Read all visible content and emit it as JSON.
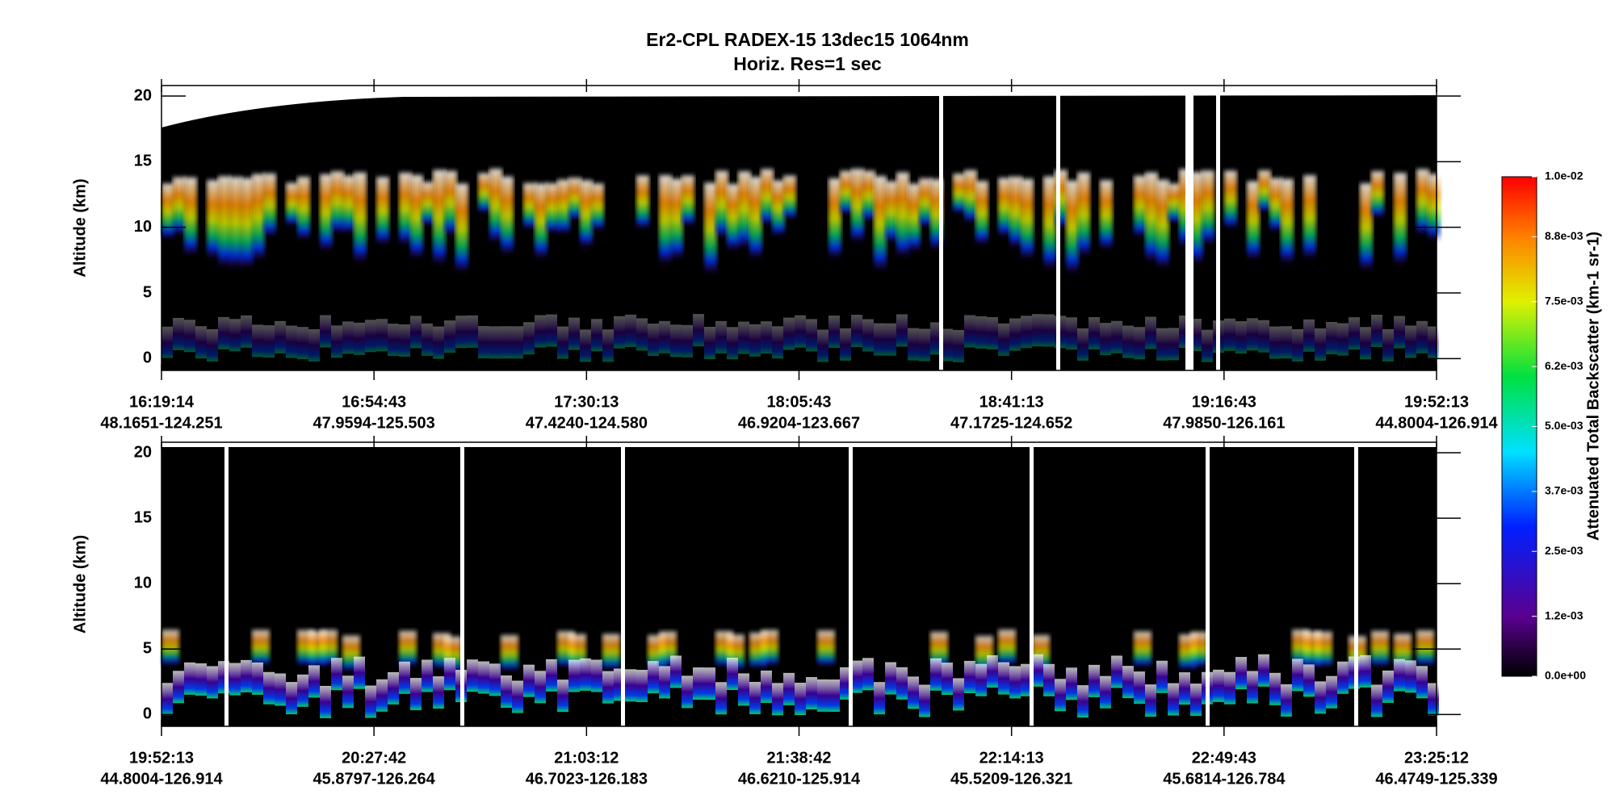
{
  "title": "Er2-CPL  RADEX-15  13dec15  1064nm",
  "subtitle": "Horiz. Res=1 sec",
  "chart_data": [
    {
      "type": "curtain",
      "ylabel": "Altitude (km)",
      "ylim": [
        -0.9,
        20.8
      ],
      "yticks": [
        0,
        5,
        10,
        15,
        20
      ],
      "x_labels": [
        [
          "16:19:14",
          "48.1651-124.251"
        ],
        [
          "16:54:43",
          "47.9594-125.503"
        ],
        [
          "17:30:13",
          "47.4240-124.580"
        ],
        [
          "18:05:43",
          "46.9204-123.667"
        ],
        [
          "18:41:13",
          "47.1725-124.652"
        ],
        [
          "19:16:43",
          "47.9850-126.161"
        ],
        [
          "19:52:13",
          "44.8004-126.914"
        ]
      ]
    },
    {
      "type": "curtain",
      "ylabel": "Altitude (km)",
      "ylim": [
        -0.9,
        20.8
      ],
      "yticks": [
        0,
        5,
        10,
        15,
        20
      ],
      "x_labels": [
        [
          "19:52:13",
          "44.8004-126.914"
        ],
        [
          "20:27:42",
          "45.8797-126.264"
        ],
        [
          "21:03:12",
          "46.7023-126.183"
        ],
        [
          "21:38:42",
          "46.6210-125.914"
        ],
        [
          "22:14:13",
          "45.5209-126.321"
        ],
        [
          "22:49:43",
          "45.6814-126.784"
        ],
        [
          "23:25:12",
          "46.4749-125.339"
        ]
      ]
    },
    {
      "type": "colorbar",
      "label": "Attenuated Total Backscatter (km-1 sr-1)",
      "clim": [
        0,
        0.01
      ],
      "ticks": [
        {
          "value": 0,
          "label": "0.0e+00"
        },
        {
          "value": 0.0012,
          "label": "1.2e-03"
        },
        {
          "value": 0.0025,
          "label": "2.5e-03"
        },
        {
          "value": 0.0037,
          "label": "3.7e-03"
        },
        {
          "value": 0.005,
          "label": "5.0e-03"
        },
        {
          "value": 0.0062,
          "label": "6.2e-03"
        },
        {
          "value": 0.0075,
          "label": "7.5e-03"
        },
        {
          "value": 0.0088,
          "label": "8.8e-03"
        },
        {
          "value": 0.01,
          "label": "1.0e-02"
        }
      ]
    }
  ]
}
